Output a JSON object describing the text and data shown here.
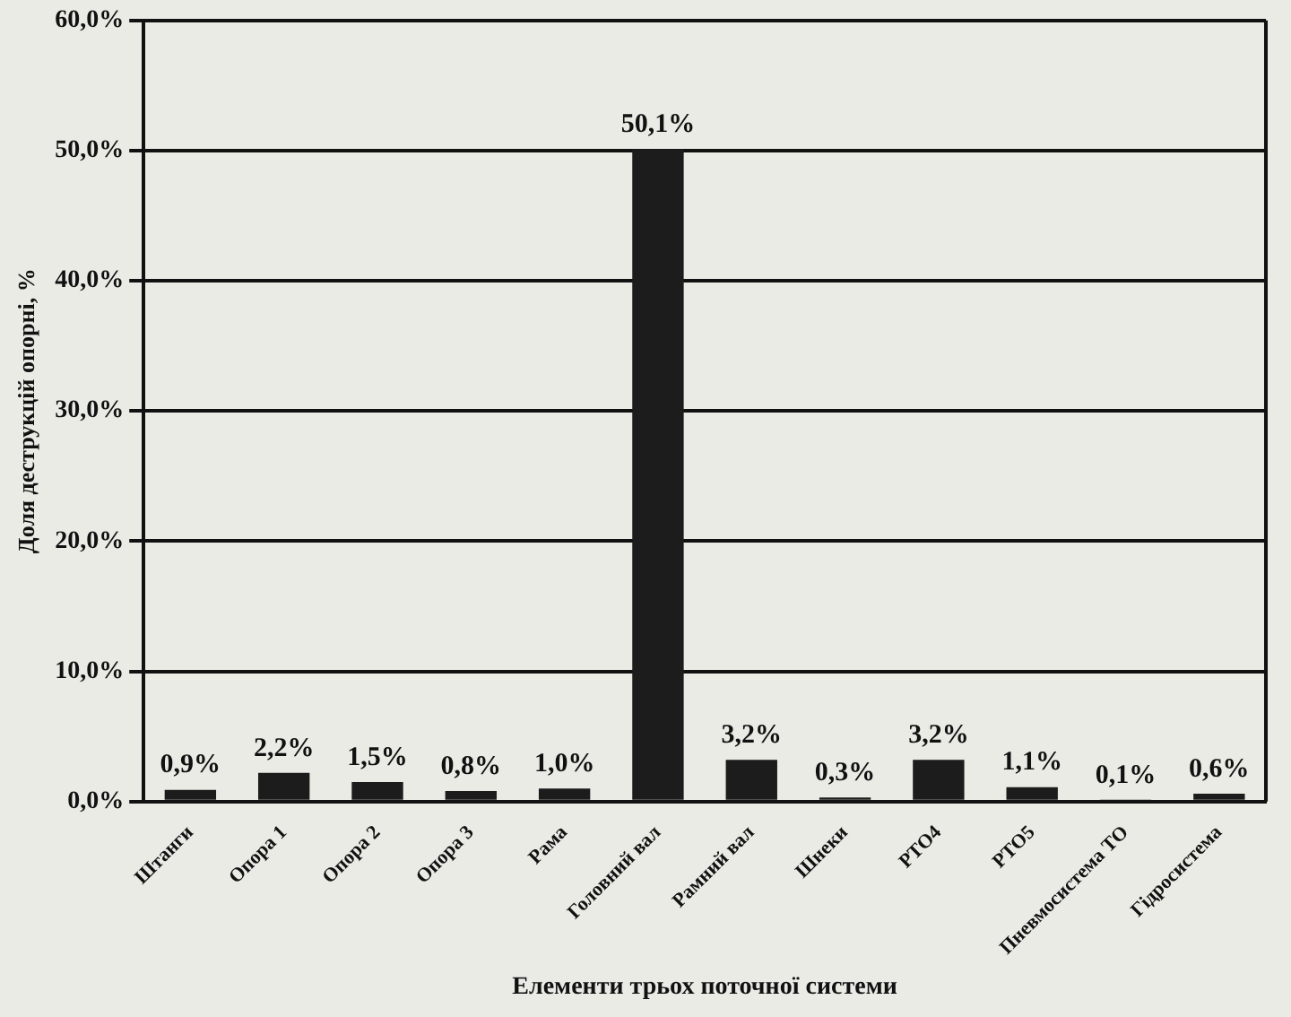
{
  "chart_data": {
    "type": "bar",
    "xlabel": "Елементи трьох поточної системи",
    "ylabel": "Доля деструкцій опорні, %",
    "categories": [
      "Штанги",
      "Опора 1",
      "Опора 2",
      "Опора 3",
      "Рама",
      "Головний вал",
      "Рамний вал",
      "Шнеки",
      "РТО4",
      "РТО5",
      "Пневмосистема ТО",
      "Гідросистема"
    ],
    "values": [
      0.9,
      2.2,
      1.5,
      0.8,
      1.0,
      50.1,
      3.2,
      0.3,
      3.2,
      1.1,
      0.1,
      0.6
    ],
    "value_labels": [
      "0,9%",
      "2,2%",
      "1,5%",
      "0,8%",
      "1,0%",
      "50,1%",
      "3,2%",
      "0,3%",
      "3,2%",
      "1,1%",
      "0,1%",
      "0,6%"
    ],
    "color": "#1c1c1c",
    "ylim": [
      0,
      60
    ],
    "yticks": [
      {
        "value": 0,
        "label": "0,0%"
      },
      {
        "value": 10,
        "label": "10,0%"
      },
      {
        "value": 20,
        "label": "20,0%"
      },
      {
        "value": 30,
        "label": "30,0%"
      },
      {
        "value": 40,
        "label": "40,0%"
      },
      {
        "value": 50,
        "label": "50,0%"
      },
      {
        "value": 60,
        "label": "60,0%"
      }
    ],
    "grid": "y"
  }
}
